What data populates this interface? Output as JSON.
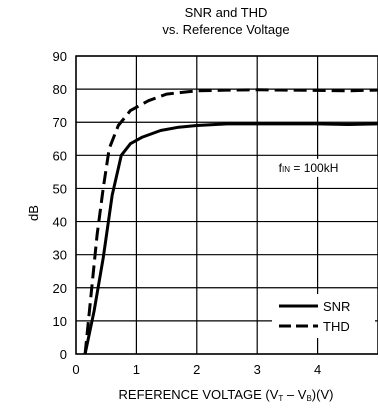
{
  "chart_data": {
    "type": "line",
    "title_line1": "SNR and THD",
    "title_line2": "vs. Reference Voltage",
    "ylabel": "dB",
    "xlabel_pre": "REFERENCE VOLTAGE (V",
    "xlabel_sub1": "T",
    "xlabel_mid": " – V",
    "xlabel_sub2": "B",
    "xlabel_post": ")(V)",
    "xlim": [
      0,
      5
    ],
    "ylim": [
      0,
      90
    ],
    "x_ticks": [
      0,
      1,
      2,
      3,
      4
    ],
    "y_ticks": [
      0,
      10,
      20,
      30,
      40,
      50,
      60,
      70,
      80,
      90
    ],
    "grid": true,
    "annotation": {
      "pre": "f",
      "sub": "IN",
      "post": " = 100kH",
      "at": [
        3.85,
        55
      ]
    },
    "legend_position": "bottom-right",
    "series": [
      {
        "name": "SNR",
        "style": "solid",
        "points": [
          [
            0.15,
            0
          ],
          [
            0.3,
            13
          ],
          [
            0.45,
            29
          ],
          [
            0.6,
            48
          ],
          [
            0.75,
            60
          ],
          [
            0.9,
            63.5
          ],
          [
            1.1,
            65.5
          ],
          [
            1.4,
            67.5
          ],
          [
            1.7,
            68.5
          ],
          [
            2.0,
            69
          ],
          [
            2.5,
            69.5
          ],
          [
            3.0,
            69.5
          ],
          [
            3.5,
            69.5
          ],
          [
            4.0,
            69.5
          ],
          [
            4.5,
            69.3
          ],
          [
            5.0,
            69.5
          ]
        ]
      },
      {
        "name": "THD",
        "style": "dashed",
        "points": [
          [
            0.15,
            0
          ],
          [
            0.25,
            18
          ],
          [
            0.35,
            36
          ],
          [
            0.45,
            50
          ],
          [
            0.55,
            62
          ],
          [
            0.7,
            69
          ],
          [
            0.9,
            73.5
          ],
          [
            1.2,
            76.5
          ],
          [
            1.5,
            78.5
          ],
          [
            2.0,
            79.5
          ],
          [
            2.5,
            79.7
          ],
          [
            3.0,
            79.8
          ],
          [
            3.5,
            79.7
          ],
          [
            4.0,
            79.6
          ],
          [
            4.5,
            79.5
          ],
          [
            5.0,
            79.7
          ]
        ]
      }
    ]
  }
}
